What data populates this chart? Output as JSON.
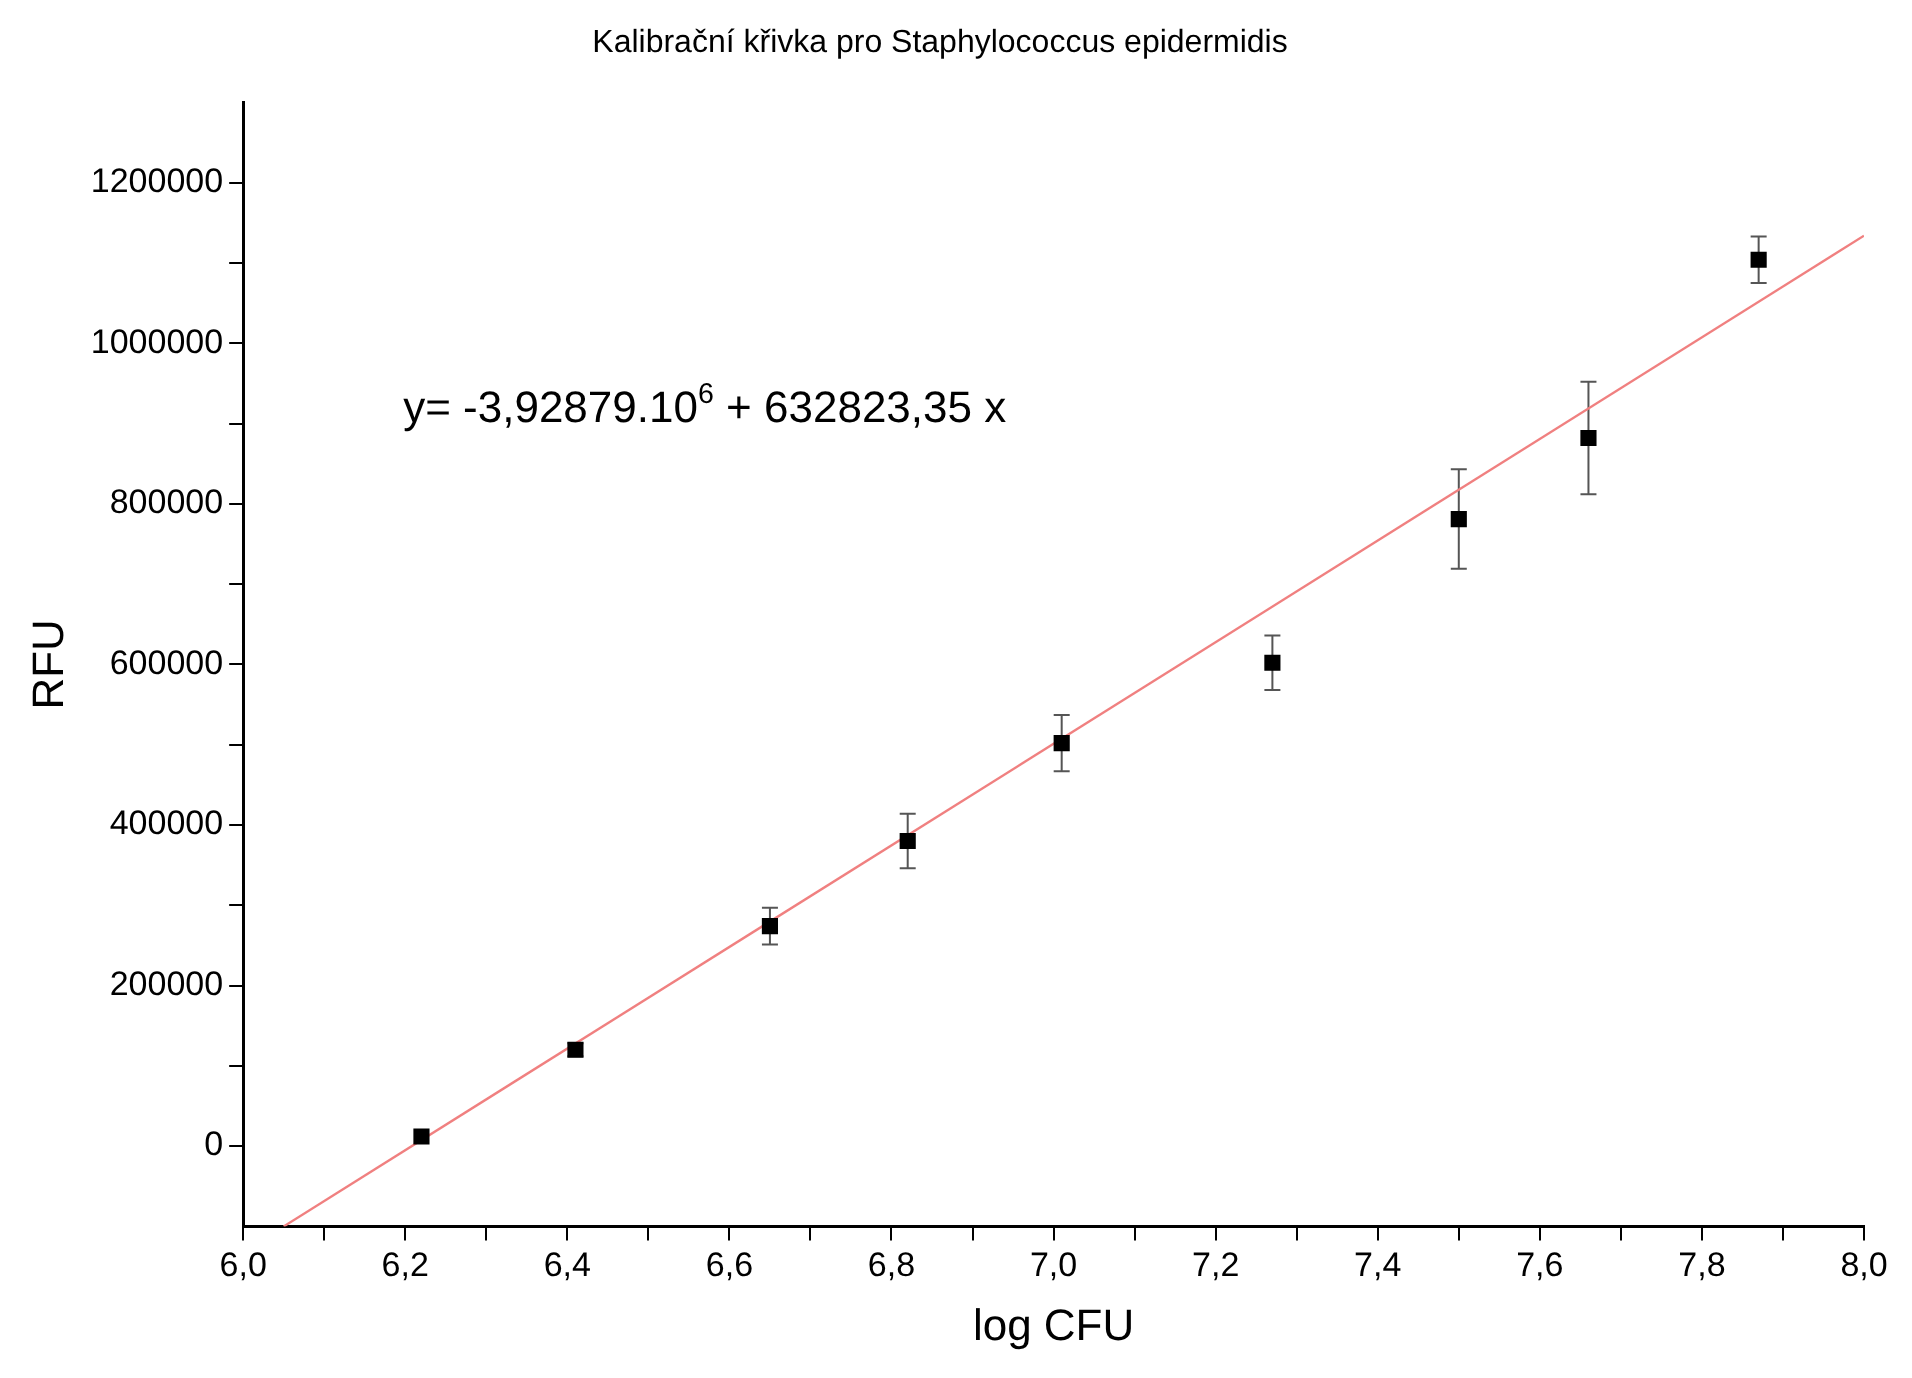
{
  "chart_data": {
    "type": "scatter",
    "title": "Kalibrační křivka pro Staphylococcus epidermidis",
    "xlabel": "log CFU",
    "ylabel": "RFU",
    "annotations": [
      "y= -3,92879.10$^{6}$ + 632823,35 x"
    ],
    "series": [
      {
        "marker": "square",
        "color": "#000000",
        "x": [
          6.22,
          6.41,
          6.65,
          6.82,
          7.01,
          7.27,
          7.5,
          7.66,
          7.87
        ],
        "values": [
          12000,
          120000,
          274000,
          380000,
          502000,
          602000,
          781000,
          882000,
          1104000
        ],
        "errors": [
          null,
          8000,
          23000,
          34000,
          35000,
          34000,
          62000,
          70000,
          29000
        ]
      },
      {
        "type": "line",
        "color": "#f08080",
        "x": [
          6.05,
          8.0
        ],
        "values": [
          -100000,
          1134000
        ]
      }
    ],
    "grid": false,
    "legend": false,
    "xlim": [
      6.0,
      8.0
    ],
    "xticks": [
      {
        "value": 6.0,
        "label": "6,0"
      },
      {
        "value": 6.1,
        "label": null
      },
      {
        "value": 6.2,
        "label": "6,2"
      },
      {
        "value": 6.3,
        "label": null
      },
      {
        "value": 6.4,
        "label": "6,4"
      },
      {
        "value": 6.5,
        "label": null
      },
      {
        "value": 6.6,
        "label": "6,6"
      },
      {
        "value": 6.7,
        "label": null
      },
      {
        "value": 6.8,
        "label": "6,8"
      },
      {
        "value": 6.9,
        "label": null
      },
      {
        "value": 7.0,
        "label": "7,0"
      },
      {
        "value": 7.1,
        "label": null
      },
      {
        "value": 7.2,
        "label": "7,2"
      },
      {
        "value": 7.3,
        "label": null
      },
      {
        "value": 7.4,
        "label": "7,4"
      },
      {
        "value": 7.5,
        "label": null
      },
      {
        "value": 7.6,
        "label": "7,6"
      },
      {
        "value": 7.7,
        "label": null
      },
      {
        "value": 7.8,
        "label": "7,8"
      },
      {
        "value": 7.9,
        "label": null
      },
      {
        "value": 8.0,
        "label": "8,0"
      }
    ],
    "ylim": [
      -100000,
      1300000
    ],
    "yticks": [
      0,
      {
        "value": 100000,
        "label": null
      },
      200000,
      {
        "value": 300000,
        "label": null
      },
      400000,
      {
        "value": 500000,
        "label": null
      },
      600000,
      {
        "value": 700000,
        "label": null
      },
      800000,
      {
        "value": 900000,
        "label": null
      },
      1000000,
      {
        "value": 1100000,
        "label": null
      },
      1200000
    ]
  }
}
